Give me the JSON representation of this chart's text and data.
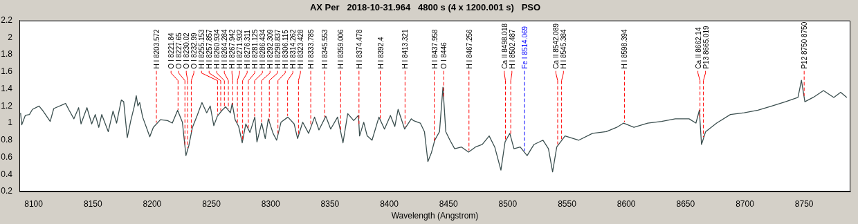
{
  "chart_data": {
    "type": "line",
    "title": "AX Per   2018-10-31.964   4800 s (4 x 1200.001 s)   PSO",
    "xlabel": "Wavelength (Angstrom)",
    "xlim": [
      8088,
      8789
    ],
    "xticks": [
      8100,
      8150,
      8200,
      8250,
      8300,
      8350,
      8400,
      8450,
      8500,
      8550,
      8600,
      8650,
      8700,
      8750
    ],
    "ylim": [
      0.2,
      2.2
    ],
    "yticks": [
      0.2,
      0.4,
      0.6,
      0.8,
      1,
      1.2,
      1.4,
      1.6,
      1.8,
      2,
      2.2
    ],
    "grid": false,
    "legend": false,
    "marker": "none",
    "line_style": "solid",
    "series": [
      {
        "color": "#3b4f4f",
        "x": [
          8089,
          8090,
          8093,
          8096.5,
          8099,
          8104.6,
          8107.5,
          8114,
          8117,
          8127,
          8130,
          8134,
          8138,
          8140,
          8145,
          8149,
          8152,
          8155,
          8157.5,
          8163,
          8167,
          8170,
          8174,
          8176,
          8179,
          8182,
          8185,
          8186.6,
          8188,
          8189.5,
          8192,
          8198,
          8201,
          8207,
          8213,
          8217,
          8221.5,
          8225.5,
          8228.5,
          8231,
          8234,
          8238,
          8242,
          8246,
          8249,
          8252,
          8255,
          8259,
          8262,
          8266,
          8267.5,
          8270,
          8273,
          8276,
          8279,
          8282.5,
          8286.6,
          8288.4,
          8292.4,
          8295.4,
          8298,
          8302,
          8305,
          8308.7,
          8314.5,
          8319.8,
          8322.7,
          8327,
          8332,
          8337,
          8340.7,
          8346.5,
          8350.6,
          8356.4,
          8361,
          8365,
          8370,
          8374,
          8375,
          8378.5,
          8381.4,
          8385.5,
          8391.3,
          8396,
          8401,
          8404.7,
          8407.5,
          8413,
          8418.6,
          8420.3,
          8426.2,
          8429.7,
          8432.6,
          8435.5,
          8438.4,
          8442.4,
          8445.3,
          8447.7,
          8451.2,
          8455.2,
          8461,
          8466.9,
          8472.7,
          8478.5,
          8484.3,
          8489,
          8494.2,
          8497.7,
          8501.7,
          8505.2,
          8510.5,
          8516.3,
          8522.1,
          8529.7,
          8534.3,
          8537.8,
          8541.3,
          8548.3,
          8559.9,
          8571.5,
          8583.1,
          8591.9,
          8597.7,
          8606.4,
          8618,
          8629.7,
          8641.3,
          8652.9,
          8658.7,
          8661.6,
          8663.4,
          8666.9,
          8676.2,
          8687.8,
          8699.4,
          8711,
          8722.7,
          8734.3,
          8744.8,
          8747.7,
          8750.6,
          8757.6,
          8766.3,
          8775,
          8780.8,
          8786
        ],
        "values": [
          1.12,
          0.98,
          1.09,
          1.1,
          1.16,
          1.2,
          1.15,
          1.02,
          1.17,
          1.23,
          1.15,
          1.05,
          1.18,
          0.99,
          1.18,
          0.99,
          1.1,
          0.95,
          1.1,
          0.9,
          1.14,
          1.0,
          1.27,
          1.25,
          0.83,
          1.03,
          1.2,
          1.32,
          1.2,
          1.24,
          1.07,
          0.84,
          0.95,
          1.04,
          1.03,
          1.0,
          1.15,
          1.01,
          0.62,
          0.74,
          0.95,
          1.09,
          1.24,
          1.12,
          1.2,
          0.97,
          1.08,
          1.15,
          1.19,
          1.12,
          1.23,
          1.04,
          0.96,
          0.77,
          0.99,
          0.89,
          1.07,
          0.78,
          1.0,
          0.82,
          1.05,
          0.88,
          0.8,
          1.01,
          1.07,
          0.99,
          0.82,
          1.01,
          0.88,
          1.07,
          0.92,
          1.08,
          0.93,
          1.07,
          0.77,
          1.11,
          1.03,
          1.09,
          0.85,
          1.01,
          0.85,
          0.8,
          1.07,
          0.93,
          1.09,
          0.96,
          1.16,
          0.93,
          1.05,
          1.03,
          1.0,
          0.9,
          0.55,
          0.65,
          0.8,
          0.9,
          1.42,
          0.9,
          0.8,
          0.7,
          0.72,
          0.66,
          0.72,
          0.75,
          0.85,
          0.72,
          0.45,
          0.78,
          0.88,
          0.7,
          0.72,
          0.62,
          0.75,
          0.8,
          0.7,
          0.43,
          0.72,
          0.85,
          0.8,
          0.88,
          0.9,
          0.95,
          1.0,
          0.95,
          1.0,
          1.02,
          1.05,
          1.05,
          1.0,
          1.15,
          0.75,
          0.9,
          1.0,
          1.1,
          1.12,
          1.15,
          1.2,
          1.25,
          1.3,
          1.5,
          1.25,
          1.3,
          1.38,
          1.3,
          1.36,
          1.3
        ]
      }
    ],
    "ref_lines": [
      {
        "axis": "x",
        "value": 8203.572,
        "label": "H I 8203.572",
        "color": "#ff0000",
        "line_style": "dashed"
      },
      {
        "axis": "x",
        "value": 8221.84,
        "label": "O I 8221.84",
        "color": "#ff0000",
        "line_style": "dashed"
      },
      {
        "axis": "x",
        "value": 8227.65,
        "label": "O I 8227.65",
        "color": "#ff0000",
        "line_style": "dashed"
      },
      {
        "axis": "x",
        "value": 8230.02,
        "label": "O I 8230.02",
        "color": "#ff0000",
        "line_style": "dashed"
      },
      {
        "axis": "x",
        "value": 8232.99,
        "label": "O I 8232.99",
        "color": "#ff0000",
        "line_style": "dashed"
      },
      {
        "axis": "x",
        "value": 8255.153,
        "label": "H I 8255.153",
        "color": "#ff0000",
        "line_style": "dashed"
      },
      {
        "axis": "x",
        "value": 8257.857,
        "label": "H I 8257.857",
        "color": "#ff0000",
        "line_style": "dashed"
      },
      {
        "axis": "x",
        "value": 8260.934,
        "label": "H I 8260.934",
        "color": "#ff0000",
        "line_style": "dashed"
      },
      {
        "axis": "x",
        "value": 8264.284,
        "label": "H I 8264.284",
        "color": "#ff0000",
        "line_style": "dashed"
      },
      {
        "axis": "x",
        "value": 8267.942,
        "label": "H I 8267.942",
        "color": "#ff0000",
        "line_style": "dashed"
      },
      {
        "axis": "x",
        "value": 8271.932,
        "label": "H I 8271.932",
        "color": "#ff0000",
        "line_style": "dashed"
      },
      {
        "axis": "x",
        "value": 8276.311,
        "label": "H I 8276.311",
        "color": "#ff0000",
        "line_style": "dashed"
      },
      {
        "axis": "x",
        "value": 8281.125,
        "label": "H I 8281.125",
        "color": "#ff0000",
        "line_style": "dashed"
      },
      {
        "axis": "x",
        "value": 8286.434,
        "label": "H I 8286.434",
        "color": "#ff0000",
        "line_style": "dashed"
      },
      {
        "axis": "x",
        "value": 8292.309,
        "label": "H I 8292.309",
        "color": "#ff0000",
        "line_style": "dashed"
      },
      {
        "axis": "x",
        "value": 8298.837,
        "label": "H I 8298.837",
        "color": "#ff0000",
        "line_style": "dashed"
      },
      {
        "axis": "x",
        "value": 8306.115,
        "label": "H I 8306.115",
        "color": "#ff0000",
        "line_style": "dashed"
      },
      {
        "axis": "x",
        "value": 8314.262,
        "label": "H I 8314.262",
        "color": "#ff0000",
        "line_style": "dashed"
      },
      {
        "axis": "x",
        "value": 8323.428,
        "label": "H I 8323.428",
        "color": "#ff0000",
        "line_style": "dashed"
      },
      {
        "axis": "x",
        "value": 8333.785,
        "label": "H I 8333.785",
        "color": "#ff0000",
        "line_style": "dashed"
      },
      {
        "axis": "x",
        "value": 8345.553,
        "label": "H I 8345.553",
        "color": "#ff0000",
        "line_style": "dashed"
      },
      {
        "axis": "x",
        "value": 8359.006,
        "label": "H I 8359.006",
        "color": "#ff0000",
        "line_style": "dashed"
      },
      {
        "axis": "x",
        "value": 8374.478,
        "label": "H I 8374.478",
        "color": "#ff0000",
        "line_style": "dashed"
      },
      {
        "axis": "x",
        "value": 8392.4,
        "label": "H I 8392.4",
        "color": "#ff0000",
        "line_style": "dashed"
      },
      {
        "axis": "x",
        "value": 8413.321,
        "label": "H I 8413.321",
        "color": "#ff0000",
        "line_style": "dashed"
      },
      {
        "axis": "x",
        "value": 8437.958,
        "label": "H I 8437.958",
        "color": "#ff0000",
        "line_style": "dashed"
      },
      {
        "axis": "x",
        "value": 8446,
        "label": "O I 8446",
        "color": "#ff0000",
        "line_style": "dashed"
      },
      {
        "axis": "x",
        "value": 8467.256,
        "label": "H I 8467.256",
        "color": "#ff0000",
        "line_style": "dashed"
      },
      {
        "axis": "x",
        "value": 8498.018,
        "label": "Ca II 8498.018",
        "color": "#ff0000",
        "line_style": "dashed"
      },
      {
        "axis": "x",
        "value": 8502.487,
        "label": "H I 8502.487",
        "color": "#ff0000",
        "line_style": "dashed"
      },
      {
        "axis": "x",
        "value": 8514.069,
        "label": "Fe I 8514.069",
        "color": "#0000ff",
        "line_style": "dashed"
      },
      {
        "axis": "x",
        "value": 8542.089,
        "label": "Ca II 8542.089",
        "color": "#ff0000",
        "line_style": "dashed"
      },
      {
        "axis": "x",
        "value": 8545.384,
        "label": "H I 8545.384",
        "color": "#ff0000",
        "line_style": "dashed"
      },
      {
        "axis": "x",
        "value": 8598.394,
        "label": "H I 8598.394",
        "color": "#ff0000",
        "line_style": "dashed"
      },
      {
        "axis": "x",
        "value": 8662.14,
        "label": "Ca II 8662.14",
        "color": "#ff0000",
        "line_style": "dashed"
      },
      {
        "axis": "x",
        "value": 8665.019,
        "label": "P13 8665.019",
        "color": "#ff0000",
        "line_style": "dashed"
      },
      {
        "axis": "x",
        "value": 8750,
        "label": "P12 8750 8750",
        "color": "#ff0000",
        "line_style": "dashed"
      }
    ]
  }
}
